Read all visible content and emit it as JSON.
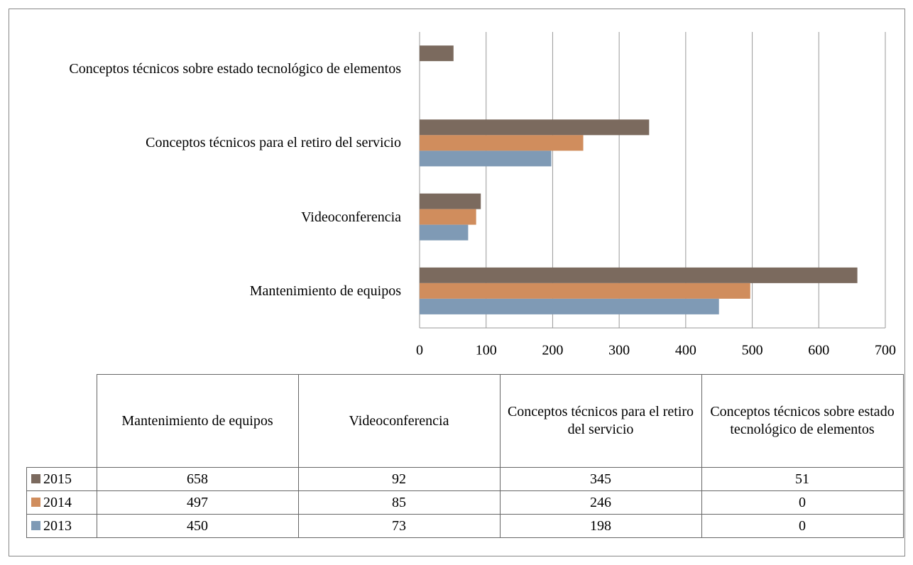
{
  "chart_data": {
    "type": "bar",
    "orientation": "horizontal",
    "categories": [
      "Mantenimiento de equipos",
      "Videoconferencia",
      "Conceptos técnicos para el retiro del servicio",
      "Conceptos técnicos sobre estado tecnológico de elementos"
    ],
    "series": [
      {
        "name": "2015",
        "color": "#7b6a5e",
        "values": [
          658,
          92,
          345,
          51
        ]
      },
      {
        "name": "2014",
        "color": "#d08d5d",
        "values": [
          497,
          85,
          246,
          0
        ]
      },
      {
        "name": "2013",
        "color": "#7f9ab5",
        "values": [
          450,
          73,
          198,
          0
        ]
      }
    ],
    "xlim": [
      0,
      700
    ],
    "xticks": [
      0,
      100,
      200,
      300,
      400,
      500,
      600,
      700
    ],
    "grid": true
  }
}
